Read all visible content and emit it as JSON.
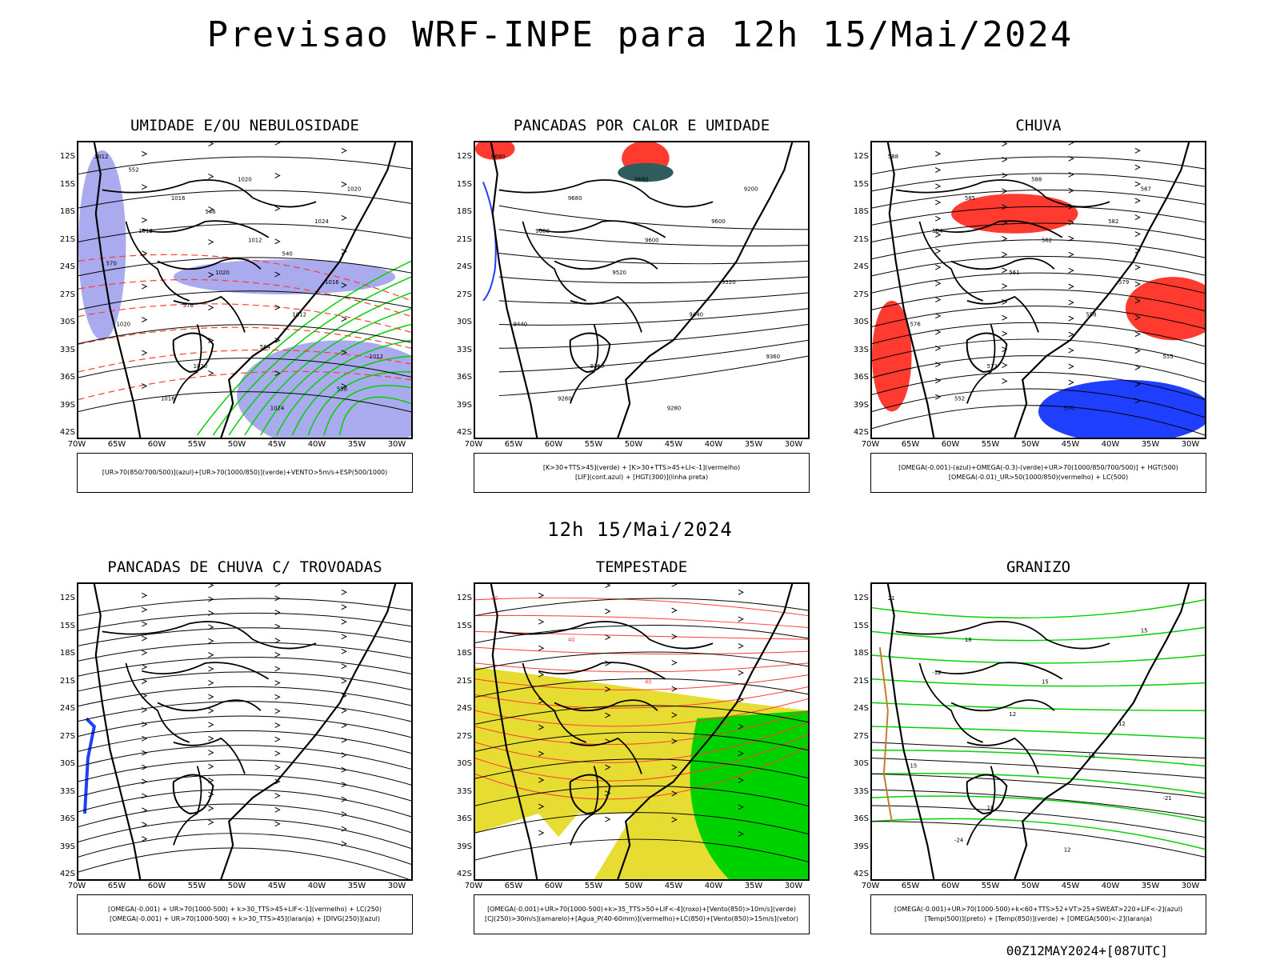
{
  "title": "Previsao WRF-INPE  para 12h 15/Mai/2024",
  "mid_title": "12h 15/Mai/2024",
  "footer": "00Z12MAY2024+[087UTC]",
  "lat_labels": [
    "12S",
    "15S",
    "18S",
    "21S",
    "24S",
    "27S",
    "30S",
    "33S",
    "36S",
    "39S",
    "42S"
  ],
  "lon_labels": [
    "70W",
    "65W",
    "60W",
    "55W",
    "50W",
    "45W",
    "40W",
    "35W",
    "30W"
  ],
  "panels": [
    {
      "title": "UMIDADE E/OU NEBULOSIDADE",
      "legend": [
        "[UR>70(850/700/500)](azul)+[UR>70(1000/850)](verde)+VENTO>5m/s+ESP(500/1000)"
      ],
      "labels": [
        "1012",
        "1016",
        "1012",
        "1016",
        "1020",
        "1020",
        "1024",
        "1020",
        "1012",
        "1020",
        "1012",
        "1012",
        "1016",
        "1020",
        "1024",
        "570",
        "576",
        "564",
        "558",
        "552",
        "546",
        "540"
      ]
    },
    {
      "title": "PANCADAS POR CALOR E UMIDADE",
      "legend": [
        "[K>30+TTS>45](verde) + [K>30+TTS>45+LI<-1](vermelho)",
        "[LIF](cont.azul) + [HGT(300)](linha preta)"
      ],
      "labels": [
        "9680",
        "9680",
        "9600",
        "9520",
        "9440",
        "9360",
        "9280",
        "9200",
        "9600",
        "9520",
        "9440",
        "9360",
        "9280",
        "9680",
        "9600"
      ]
    },
    {
      "title": "CHUVA",
      "legend": [
        "[OMEGA(-0.001)-(azul)+OMEGA(-0.3)-(verde)+UR>70(1000/850/700/500)] + HGT(500)",
        "[OMEGA(-0.01)_UR>50(1000/850)(vermelho) + LC(500)"
      ],
      "labels": [
        "588",
        "585",
        "582",
        "579",
        "576",
        "573",
        "570",
        "567",
        "564",
        "561",
        "558",
        "555",
        "552",
        "588",
        "582"
      ]
    },
    {
      "title": "PANCADAS DE CHUVA C/ TROVOADAS",
      "legend": [
        "[OMEGA(-0.001) + UR>70(1000-500) + k>30_TTS>45+LIF<-1](vermelho) + LC(250)",
        "[OMEGA(-0.001) + UR>70(1000-500) + k>30_TTS>45](laranja) + [DIVG(250)](azul)"
      ],
      "labels": []
    },
    {
      "title": "TEMPESTADE",
      "legend": [
        "[OMEGA(-0.001)+UR>70(1000-500)+k>35_TTS>50+LIF<-4](roxo)+[Vento(850)>10m/s](verde)",
        "[CJ(250)>30m/s](amarelo)+[Agua_P(40-60mm)](vermelho)+LC(850)+[Vento(850)>15m/s](vetor)"
      ],
      "labels": [
        "40",
        "40",
        "40",
        "40"
      ]
    },
    {
      "title": "GRANIZO",
      "legend": [
        "[OMEGA(-0.001)+UR>70(1000-500)+k<60+TTS>52+VT>25+SWEAT>220+LIF<-2](azul)",
        "[Temp(500)](preto) + [Temp(850)](verde) + [OMEGA(500)<-2](laranja)"
      ],
      "labels": [
        "21",
        "18",
        "15",
        "12",
        "15",
        "18",
        "12",
        "15",
        "-12",
        "12",
        "-18",
        "-21",
        "-24"
      ]
    }
  ],
  "colors": {
    "blue": "#1f3fff",
    "green": "#00d200",
    "red": "#ff3b30",
    "yellow": "#e6dc32",
    "lavender": "#aaaaee",
    "dark": "#000000"
  }
}
